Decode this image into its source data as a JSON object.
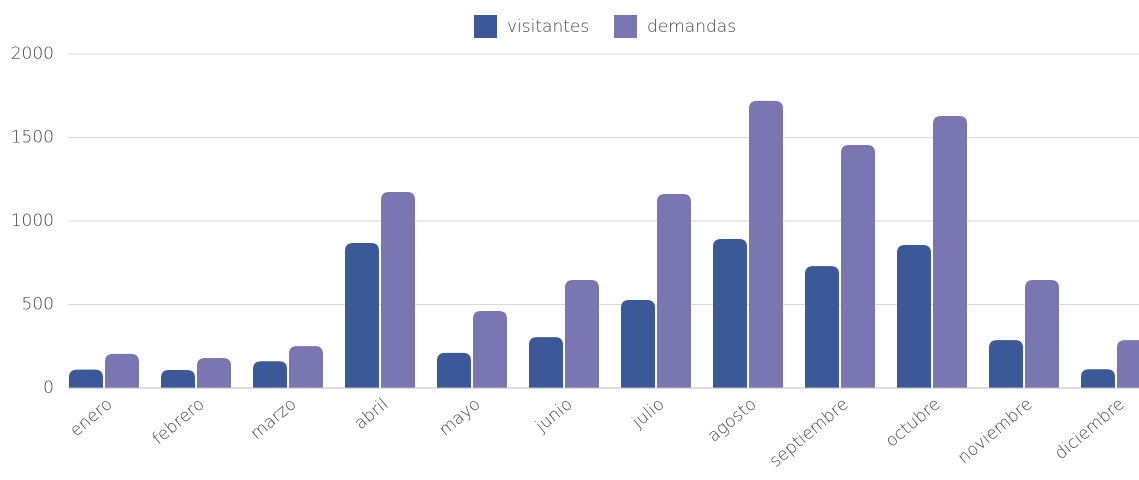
{
  "chart_data": {
    "type": "bar",
    "categories": [
      "enero",
      "febrero",
      "marzo",
      "abril",
      "mayo",
      "junio",
      "julio",
      "agosto",
      "septiembre",
      "octubre",
      "noviembre",
      "diciembre"
    ],
    "series": [
      {
        "name": "visitantes",
        "color": "#3b5998",
        "values": [
          110,
          108,
          160,
          868,
          210,
          305,
          527,
          892,
          730,
          856,
          287,
          112
        ]
      },
      {
        "name": "demandas",
        "color": "#7976b2",
        "values": [
          204,
          180,
          251,
          1174,
          461,
          647,
          1162,
          1719,
          1455,
          1629,
          647,
          287
        ]
      }
    ],
    "ylim": [
      0,
      2000
    ],
    "yticks": [
      0,
      500,
      1000,
      1500,
      2000
    ],
    "grid": true,
    "legend": "top"
  }
}
